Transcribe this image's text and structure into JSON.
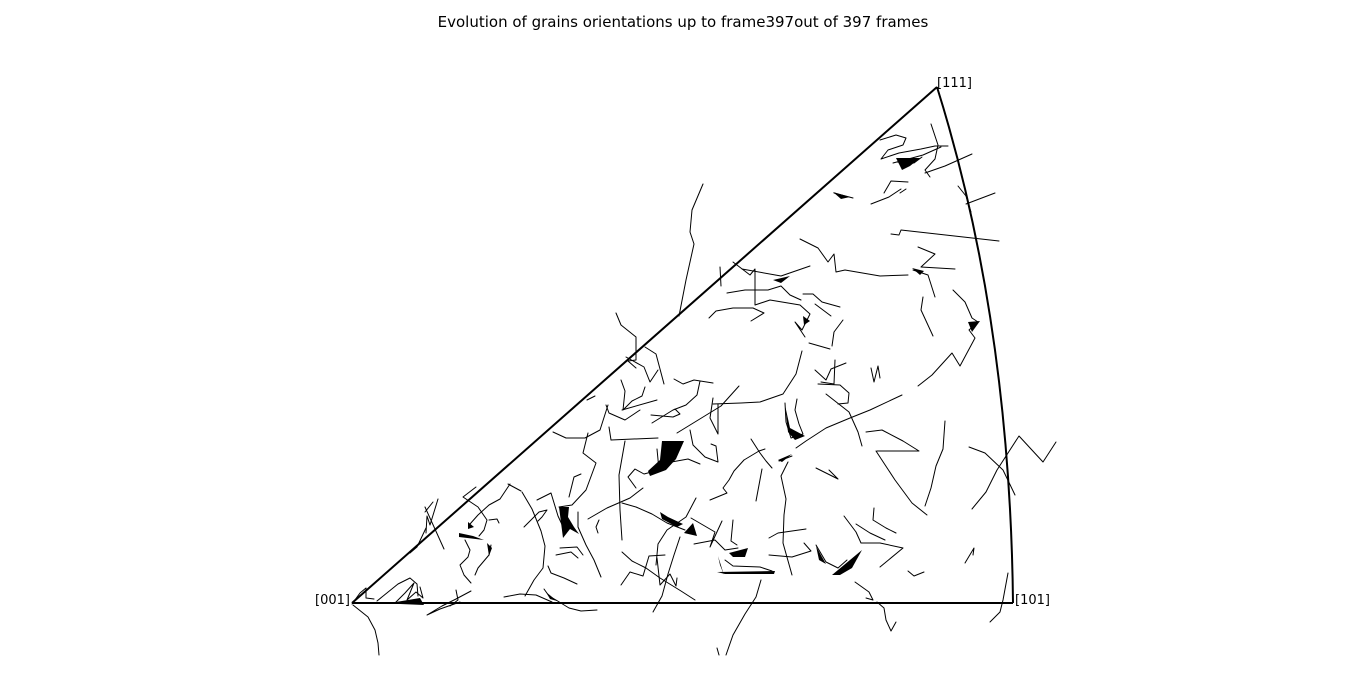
{
  "chart_data": {
    "type": "line",
    "title": "Evolution of grains orientations up to frame397out of 397 frames",
    "triangle_vertices": {
      "origin": "[001]",
      "right": "[101]",
      "apex": "[111]"
    },
    "boundary_color": "#000000",
    "trajectory_color": "#000000",
    "grid": false,
    "legend": "none",
    "frames_total": 397,
    "frame_shown": 397
  }
}
